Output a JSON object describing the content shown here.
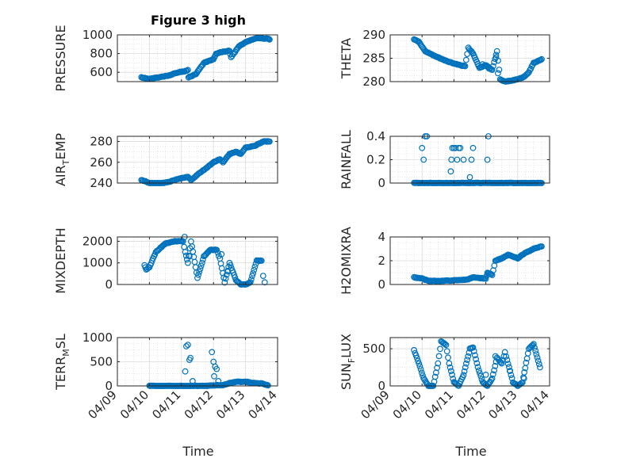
{
  "figure_title": "Figure 3 high",
  "x_axis_label": "Time",
  "x_tick_labels": [
    "04/09",
    "04/10",
    "04/11",
    "04/12",
    "04/13",
    "04/14"
  ],
  "marker_color": "#0072BD",
  "chart_data": [
    {
      "type": "scatter",
      "title": "Figure 3 high",
      "ylabel": "PRESSURE",
      "ylabel_subscript": "",
      "ylabel_suffix": "",
      "xlabel": "",
      "x_unit": "day of April",
      "x_ticks": [
        9,
        10,
        11,
        12,
        13,
        14
      ],
      "x_tick_labels": [
        "04/09",
        "04/10",
        "04/11",
        "04/12",
        "04/13",
        "04/14"
      ],
      "xlim": [
        9,
        14
      ],
      "ylim": [
        500,
        1000
      ],
      "y_ticks": [
        600,
        800,
        1000
      ],
      "y_tick_labels": [
        "600",
        "800",
        "1000"
      ],
      "grid": true,
      "keypoints": [
        [
          9.75,
          545
        ],
        [
          10.0,
          530
        ],
        [
          10.3,
          545
        ],
        [
          10.6,
          565
        ],
        [
          10.9,
          600
        ],
        [
          11.1,
          610
        ],
        [
          11.2,
          625
        ],
        [
          11.22,
          545
        ],
        [
          11.45,
          580
        ],
        [
          11.7,
          700
        ],
        [
          12.0,
          740
        ],
        [
          12.08,
          800
        ],
        [
          12.3,
          820
        ],
        [
          12.5,
          830
        ],
        [
          12.55,
          760
        ],
        [
          12.8,
          880
        ],
        [
          13.0,
          920
        ],
        [
          13.2,
          950
        ],
        [
          13.35,
          965
        ],
        [
          13.7,
          960
        ],
        [
          13.75,
          950
        ]
      ],
      "points": []
    },
    {
      "type": "scatter",
      "title": "",
      "ylabel": "THETA",
      "ylabel_subscript": "",
      "ylabel_suffix": "",
      "xlabel": "",
      "x_unit": "day of April",
      "x_ticks": [
        9,
        10,
        11,
        12,
        13,
        14
      ],
      "x_tick_labels": [
        "04/09",
        "04/10",
        "04/11",
        "04/12",
        "04/13",
        "04/14"
      ],
      "xlim": [
        9,
        14
      ],
      "ylim": [
        280,
        290
      ],
      "y_ticks": [
        280,
        285,
        290
      ],
      "y_tick_labels": [
        "280",
        "285",
        "290"
      ],
      "grid": true,
      "keypoints": [
        [
          9.75,
          289
        ],
        [
          9.9,
          288.5
        ],
        [
          10.1,
          286.5
        ],
        [
          10.4,
          285.5
        ],
        [
          10.8,
          284.3
        ],
        [
          11.2,
          283.5
        ],
        [
          11.35,
          283.3
        ],
        [
          11.45,
          287.2
        ],
        [
          11.6,
          286
        ],
        [
          11.8,
          283
        ],
        [
          12.0,
          283.5
        ],
        [
          12.2,
          282.5
        ],
        [
          12.35,
          286.5
        ],
        [
          12.45,
          280.5
        ],
        [
          12.6,
          280
        ],
        [
          12.8,
          280.2
        ],
        [
          13.0,
          280.5
        ],
        [
          13.2,
          281
        ],
        [
          13.35,
          282
        ],
        [
          13.5,
          284
        ],
        [
          13.75,
          284.8
        ]
      ],
      "extra_points": [
        [
          11.55,
          286.5
        ],
        [
          11.9,
          283.7
        ],
        [
          12.05,
          283.2
        ],
        [
          12.32,
          285.2
        ],
        [
          12.38,
          281.8
        ],
        [
          12.1,
          282.8
        ]
      ],
      "points": []
    },
    {
      "type": "scatter",
      "title": "",
      "ylabel": "AIR",
      "ylabel_subscript": "T",
      "ylabel_suffix": "EMP",
      "xlabel": "",
      "x_unit": "day of April",
      "x_ticks": [
        9,
        10,
        11,
        12,
        13,
        14
      ],
      "x_tick_labels": [
        "04/09",
        "04/10",
        "04/11",
        "04/12",
        "04/13",
        "04/14"
      ],
      "xlim": [
        9,
        14
      ],
      "ylim": [
        240,
        285
      ],
      "y_ticks": [
        240,
        260,
        280
      ],
      "y_tick_labels": [
        "240",
        "260",
        "280"
      ],
      "grid": true,
      "keypoints": [
        [
          9.75,
          243
        ],
        [
          10.0,
          240
        ],
        [
          10.3,
          239.5
        ],
        [
          10.6,
          241
        ],
        [
          10.9,
          244
        ],
        [
          11.2,
          246
        ],
        [
          11.3,
          243
        ],
        [
          11.5,
          248
        ],
        [
          11.8,
          255
        ],
        [
          12.0,
          260
        ],
        [
          12.2,
          263
        ],
        [
          12.3,
          260
        ],
        [
          12.5,
          268
        ],
        [
          12.7,
          270
        ],
        [
          12.85,
          268
        ],
        [
          13.0,
          274
        ],
        [
          13.3,
          276
        ],
        [
          13.55,
          280
        ],
        [
          13.75,
          280
        ]
      ],
      "points": []
    },
    {
      "type": "scatter",
      "title": "",
      "ylabel": "RAINFALL",
      "ylabel_subscript": "",
      "ylabel_suffix": "",
      "xlabel": "",
      "x_unit": "day of April",
      "x_ticks": [
        9,
        10,
        11,
        12,
        13,
        14
      ],
      "x_tick_labels": [
        "04/09",
        "04/10",
        "04/11",
        "04/12",
        "04/13",
        "04/14"
      ],
      "xlim": [
        9,
        14
      ],
      "ylim": [
        0,
        0.4
      ],
      "y_ticks": [
        0,
        0.2,
        0.4
      ],
      "y_tick_labels": [
        "0",
        "0.2",
        "0.4"
      ],
      "grid": true,
      "keypoints": [
        [
          9.75,
          0
        ],
        [
          13.75,
          0
        ]
      ],
      "extra_points": [
        [
          10.0,
          0.3
        ],
        [
          10.05,
          0.2
        ],
        [
          10.1,
          0.4
        ],
        [
          10.15,
          0.4
        ],
        [
          10.9,
          0.1
        ],
        [
          10.92,
          0.2
        ],
        [
          10.95,
          0.3
        ],
        [
          11.0,
          0.3
        ],
        [
          11.05,
          0.3
        ],
        [
          11.1,
          0.2
        ],
        [
          11.15,
          0.3
        ],
        [
          11.2,
          0.3
        ],
        [
          11.3,
          0.2
        ],
        [
          11.5,
          0.05
        ],
        [
          11.55,
          0.2
        ],
        [
          11.6,
          0.3
        ],
        [
          12.05,
          0.2
        ],
        [
          12.08,
          0.4
        ],
        [
          11.45,
          0.0
        ]
      ],
      "points": []
    },
    {
      "type": "scatter",
      "title": "",
      "ylabel": "MIXDEPTH",
      "ylabel_subscript": "",
      "ylabel_suffix": "",
      "xlabel": "",
      "x_unit": "day of April",
      "x_ticks": [
        9,
        10,
        11,
        12,
        13,
        14
      ],
      "x_tick_labels": [
        "04/09",
        "04/10",
        "04/11",
        "04/12",
        "04/13",
        "04/14"
      ],
      "xlim": [
        9,
        14
      ],
      "ylim": [
        0,
        2200
      ],
      "y_ticks": [
        0,
        1000,
        2000
      ],
      "y_tick_labels": [
        "0",
        "1000",
        "2000"
      ],
      "grid": true,
      "keypoints": [
        [
          9.85,
          900
        ],
        [
          9.9,
          700
        ],
        [
          10.0,
          800
        ],
        [
          10.2,
          1500
        ],
        [
          10.5,
          1900
        ],
        [
          10.8,
          2000
        ],
        [
          11.05,
          2000
        ],
        [
          11.12,
          1500
        ],
        [
          11.2,
          1000
        ],
        [
          11.3,
          2000
        ],
        [
          11.5,
          300
        ],
        [
          11.7,
          1300
        ],
        [
          11.9,
          1600
        ],
        [
          12.1,
          1600
        ],
        [
          12.2,
          1200
        ],
        [
          12.35,
          100
        ],
        [
          12.5,
          1000
        ],
        [
          12.7,
          200
        ],
        [
          12.85,
          0
        ],
        [
          13.0,
          0
        ],
        [
          13.15,
          100
        ],
        [
          13.35,
          1100
        ],
        [
          13.5,
          1100
        ]
      ],
      "extra_points": [
        [
          11.1,
          2200
        ],
        [
          11.25,
          1300
        ],
        [
          12.25,
          1400
        ],
        [
          12.45,
          600
        ],
        [
          13.55,
          400
        ],
        [
          13.6,
          100
        ]
      ],
      "points": []
    },
    {
      "type": "scatter",
      "title": "",
      "ylabel": "H2OMIXRA",
      "ylabel_subscript": "",
      "ylabel_suffix": "",
      "xlabel": "",
      "x_unit": "day of April",
      "x_ticks": [
        9,
        10,
        11,
        12,
        13,
        14
      ],
      "x_tick_labels": [
        "04/09",
        "04/10",
        "04/11",
        "04/12",
        "04/13",
        "04/14"
      ],
      "xlim": [
        9,
        14
      ],
      "ylim": [
        0,
        4
      ],
      "y_ticks": [
        0,
        2,
        4
      ],
      "y_tick_labels": [
        "0",
        "2",
        "4"
      ],
      "grid": true,
      "keypoints": [
        [
          9.75,
          0.6
        ],
        [
          10.0,
          0.5
        ],
        [
          10.2,
          0.3
        ],
        [
          10.6,
          0.3
        ],
        [
          11.0,
          0.35
        ],
        [
          11.4,
          0.4
        ],
        [
          11.6,
          0.6
        ],
        [
          12.0,
          0.5
        ],
        [
          12.05,
          1.0
        ],
        [
          12.2,
          0.8
        ],
        [
          12.3,
          2.0
        ],
        [
          12.5,
          2.2
        ],
        [
          12.7,
          2.5
        ],
        [
          13.0,
          2.2
        ],
        [
          13.2,
          2.6
        ],
        [
          13.5,
          3.0
        ],
        [
          13.75,
          3.2
        ]
      ],
      "points": []
    },
    {
      "type": "scatter",
      "title": "",
      "ylabel": "TERR",
      "ylabel_subscript": "M",
      "ylabel_suffix": "SL",
      "xlabel": "Time",
      "x_unit": "day of April",
      "x_ticks": [
        9,
        10,
        11,
        12,
        13,
        14
      ],
      "x_tick_labels": [
        "04/09",
        "04/10",
        "04/11",
        "04/12",
        "04/13",
        "04/14"
      ],
      "xlim": [
        9,
        14
      ],
      "ylim": [
        0,
        1000
      ],
      "y_ticks": [
        0,
        500,
        1000
      ],
      "y_tick_labels": [
        "0",
        "500",
        "1000"
      ],
      "grid": true,
      "keypoints": [
        [
          10.0,
          0
        ],
        [
          11.1,
          0
        ],
        [
          11.3,
          0
        ],
        [
          11.6,
          0
        ],
        [
          11.7,
          0
        ],
        [
          12.3,
          20
        ],
        [
          12.5,
          60
        ],
        [
          12.7,
          80
        ],
        [
          13.0,
          90
        ],
        [
          13.2,
          60
        ],
        [
          13.5,
          50
        ],
        [
          13.7,
          10
        ]
      ],
      "extra_points": [
        [
          11.15,
          820
        ],
        [
          11.2,
          850
        ],
        [
          11.25,
          540
        ],
        [
          11.28,
          580
        ],
        [
          11.12,
          300
        ],
        [
          11.35,
          100
        ],
        [
          11.95,
          700
        ],
        [
          12.0,
          500
        ],
        [
          12.05,
          400
        ],
        [
          12.1,
          350
        ],
        [
          12.02,
          200
        ],
        [
          12.15,
          100
        ],
        [
          11.5,
          0
        ],
        [
          11.8,
          0
        ]
      ],
      "points": []
    },
    {
      "type": "scatter",
      "title": "",
      "ylabel": "SUN",
      "ylabel_subscript": "F",
      "ylabel_suffix": "LUX",
      "xlabel": "Time",
      "x_unit": "day of April",
      "x_ticks": [
        9,
        10,
        11,
        12,
        13,
        14
      ],
      "x_tick_labels": [
        "04/09",
        "04/10",
        "04/11",
        "04/12",
        "04/13",
        "04/14"
      ],
      "xlim": [
        9,
        14
      ],
      "ylim": [
        0,
        650
      ],
      "y_ticks": [
        0,
        500
      ],
      "y_tick_labels": [
        "0",
        "500"
      ],
      "grid": true,
      "keypoints": [
        [
          9.75,
          480
        ],
        [
          9.9,
          300
        ],
        [
          10.05,
          100
        ],
        [
          10.2,
          0
        ],
        [
          10.35,
          0
        ],
        [
          10.5,
          300
        ],
        [
          10.6,
          600
        ],
        [
          10.75,
          550
        ],
        [
          10.85,
          300
        ],
        [
          11.0,
          50
        ],
        [
          11.15,
          0
        ],
        [
          11.3,
          150
        ],
        [
          11.5,
          500
        ],
        [
          11.6,
          520
        ],
        [
          11.75,
          250
        ],
        [
          11.9,
          50
        ],
        [
          12.05,
          0
        ],
        [
          12.2,
          100
        ],
        [
          12.35,
          380
        ],
        [
          12.5,
          300
        ],
        [
          12.6,
          450
        ],
        [
          12.7,
          300
        ],
        [
          12.85,
          50
        ],
        [
          13.0,
          0
        ],
        [
          13.15,
          50
        ],
        [
          13.35,
          500
        ],
        [
          13.5,
          560
        ],
        [
          13.7,
          250
        ]
      ],
      "extra_points": [
        [
          12.0,
          150
        ],
        [
          12.3,
          400
        ],
        [
          12.75,
          200
        ],
        [
          13.2,
          100
        ]
      ],
      "points": []
    }
  ]
}
